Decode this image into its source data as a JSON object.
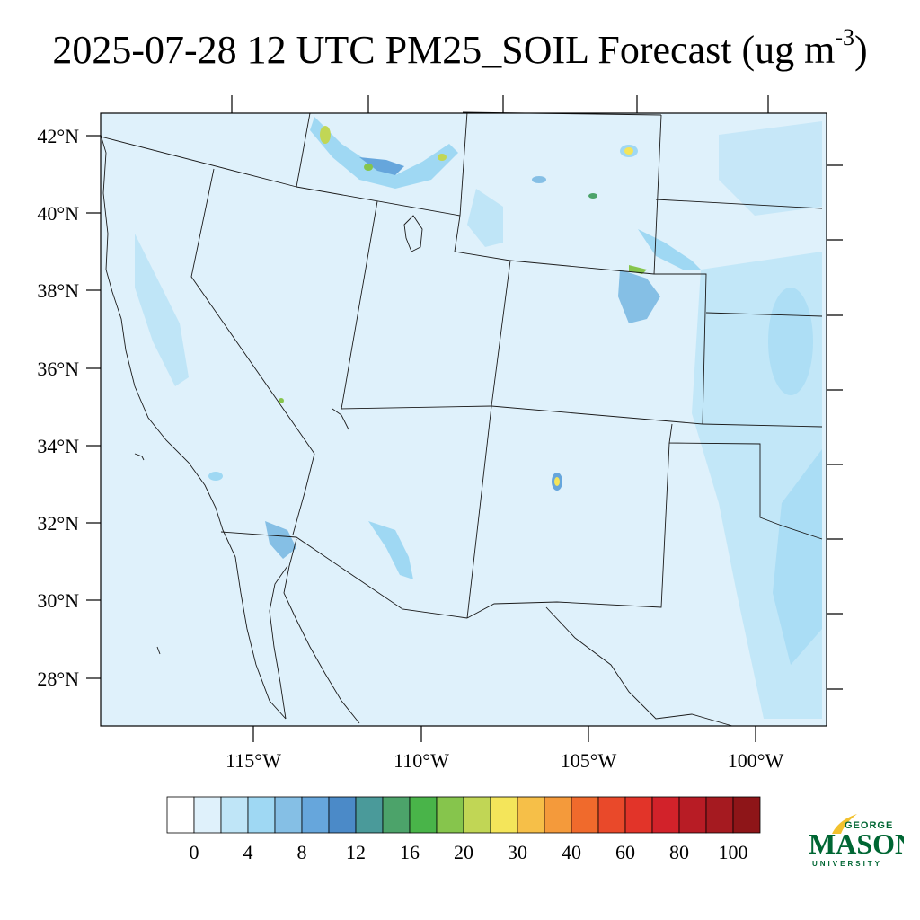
{
  "title": {
    "main": "2025-07-28 12 UTC PM25_SOIL Forecast (ug m",
    "sup": "-3",
    "close": ")"
  },
  "map": {
    "lat_labels": [
      "42°N",
      "40°N",
      "38°N",
      "36°N",
      "34°N",
      "32°N",
      "30°N",
      "28°N"
    ],
    "lon_labels": [
      "115°W",
      "110°W",
      "105°W",
      "100°W"
    ],
    "background_color": "#dff1fb",
    "line_color": "#1a1a1a"
  },
  "colorbar": {
    "colors": [
      "#ffffff",
      "#dff1fb",
      "#bfe5f7",
      "#9fd8f3",
      "#85bfe5",
      "#66a6dc",
      "#4b8ac8",
      "#4a9a9a",
      "#4ca36a",
      "#49b449",
      "#86c54c",
      "#c1d655",
      "#f4e55a",
      "#f6bf48",
      "#f49a3b",
      "#f06a2c",
      "#e9492a",
      "#e23429",
      "#d2222a",
      "#b81c25",
      "#a51a20",
      "#8e1518"
    ],
    "labels": [
      "0",
      "4",
      "8",
      "12",
      "16",
      "20",
      "30",
      "40",
      "60",
      "80",
      "100"
    ]
  },
  "logo": {
    "line1": "GEORGE",
    "line2": "MASON",
    "line3": "UNIVERSITY",
    "color": "#006633",
    "accent": "#f2c12e"
  }
}
